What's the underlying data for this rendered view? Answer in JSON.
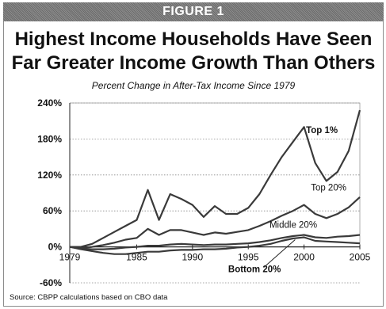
{
  "figure_label": "FIGURE 1",
  "title_line1": "Highest Income Households Have Seen",
  "title_line2": "Far Greater Income Growth Than Others",
  "source": "Source: CBPP calculations based on CBO data",
  "colors": {
    "line": "#3a3a3a",
    "grid": "#8a8a8a",
    "axis": "#222222",
    "banner": "#7a7a7a"
  },
  "chart_data": {
    "type": "line",
    "title": "Percent Change in After-Tax Income Since 1979",
    "xlabel": "",
    "ylabel": "",
    "xlim": [
      1979,
      2005
    ],
    "ylim": [
      -60,
      240
    ],
    "x_ticks": [
      1979,
      1985,
      1990,
      1995,
      2000,
      2005
    ],
    "y_ticks": [
      -60,
      0,
      60,
      120,
      180,
      240
    ],
    "y_tick_labels": [
      "-60%",
      "0%",
      "60%",
      "120%",
      "180%",
      "240%"
    ],
    "grid": "horizontal dotted",
    "legend": "direct labels",
    "x": [
      1979,
      1980,
      1981,
      1982,
      1983,
      1984,
      1985,
      1986,
      1987,
      1988,
      1989,
      1990,
      1991,
      1992,
      1993,
      1994,
      1995,
      1996,
      1997,
      1998,
      1999,
      2000,
      2001,
      2002,
      2003,
      2004,
      2005
    ],
    "series": [
      {
        "name": "Top 1%",
        "label_bold": true,
        "values": [
          0,
          0,
          5,
          15,
          25,
          35,
          45,
          95,
          45,
          88,
          80,
          70,
          50,
          68,
          55,
          55,
          65,
          88,
          120,
          150,
          175,
          200,
          140,
          110,
          125,
          160,
          228
        ]
      },
      {
        "name": "Top 20%",
        "label_bold": false,
        "values": [
          0,
          -2,
          0,
          3,
          7,
          12,
          15,
          30,
          20,
          28,
          28,
          24,
          20,
          24,
          22,
          25,
          28,
          35,
          43,
          52,
          60,
          70,
          55,
          48,
          55,
          66,
          83
        ]
      },
      {
        "name": "Middle 20%",
        "label_bold": false,
        "values": [
          0,
          -3,
          -4,
          -4,
          -3,
          -1,
          0,
          2,
          2,
          4,
          5,
          4,
          3,
          4,
          4,
          5,
          6,
          8,
          11,
          15,
          18,
          20,
          16,
          15,
          17,
          18,
          20
        ]
      },
      {
        "name": "Bottom 20%",
        "label_bold": true,
        "values": [
          0,
          -4,
          -7,
          -10,
          -12,
          -12,
          -10,
          -8,
          -8,
          -6,
          -5,
          -5,
          -4,
          -4,
          -3,
          -1,
          0,
          2,
          5,
          10,
          14,
          16,
          10,
          9,
          8,
          7,
          6
        ]
      }
    ]
  }
}
